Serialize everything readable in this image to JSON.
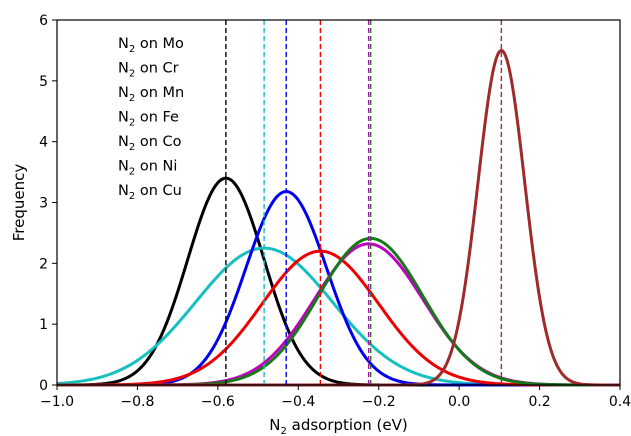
{
  "chart_data": {
    "type": "line",
    "title": "",
    "xlabel_main": "N",
    "xlabel_sub": "2",
    "xlabel_rest": " adsorption (eV)",
    "ylabel": "Frequency",
    "xlim": [
      -1.0,
      0.4
    ],
    "ylim": [
      0,
      6
    ],
    "xticks": [
      -1.0,
      -0.8,
      -0.6,
      -0.4,
      -0.2,
      0.0,
      0.2,
      0.4
    ],
    "xtick_labels": [
      "−1.0",
      "−0.8",
      "−0.6",
      "−0.4",
      "−0.2",
      "0.0",
      "0.2",
      "0.4"
    ],
    "yticks": [
      0,
      1,
      2,
      3,
      4,
      5,
      6
    ],
    "ytick_labels": [
      "0",
      "1",
      "2",
      "3",
      "4",
      "5",
      "6"
    ],
    "grid": false,
    "legend_position": "top-left",
    "series": [
      {
        "name_main": "N",
        "name_sub": "2",
        "name_rest": " on Mo",
        "color": "#000000",
        "mean": -0.58,
        "sd": 0.095,
        "peak": 3.4
      },
      {
        "name_main": "N",
        "name_sub": "2",
        "name_rest": " on Cr",
        "color": "#17bfbf",
        "mean": -0.485,
        "sd": 0.17,
        "peak": 2.25
      },
      {
        "name_main": "N",
        "name_sub": "2",
        "name_rest": " on Mn",
        "color": "#0000ee",
        "mean": -0.43,
        "sd": 0.1,
        "peak": 3.18
      },
      {
        "name_main": "N",
        "name_sub": "2",
        "name_rest": " on Fe",
        "color": "#ee0000",
        "mean": -0.345,
        "sd": 0.145,
        "peak": 2.2
      },
      {
        "name_main": "N",
        "name_sub": "2",
        "name_rest": " on Co",
        "color": "#bf00bf",
        "mean": -0.225,
        "sd": 0.135,
        "peak": 2.32
      },
      {
        "name_main": "N",
        "name_sub": "2",
        "name_rest": " on Ni",
        "color": "#157a15",
        "mean": -0.22,
        "sd": 0.13,
        "peak": 2.41
      },
      {
        "name_main": "N",
        "name_sub": "2",
        "name_rest": " on Cu",
        "color": "#9e2a2a",
        "mean": 0.105,
        "sd": 0.058,
        "peak": 5.5
      }
    ]
  }
}
